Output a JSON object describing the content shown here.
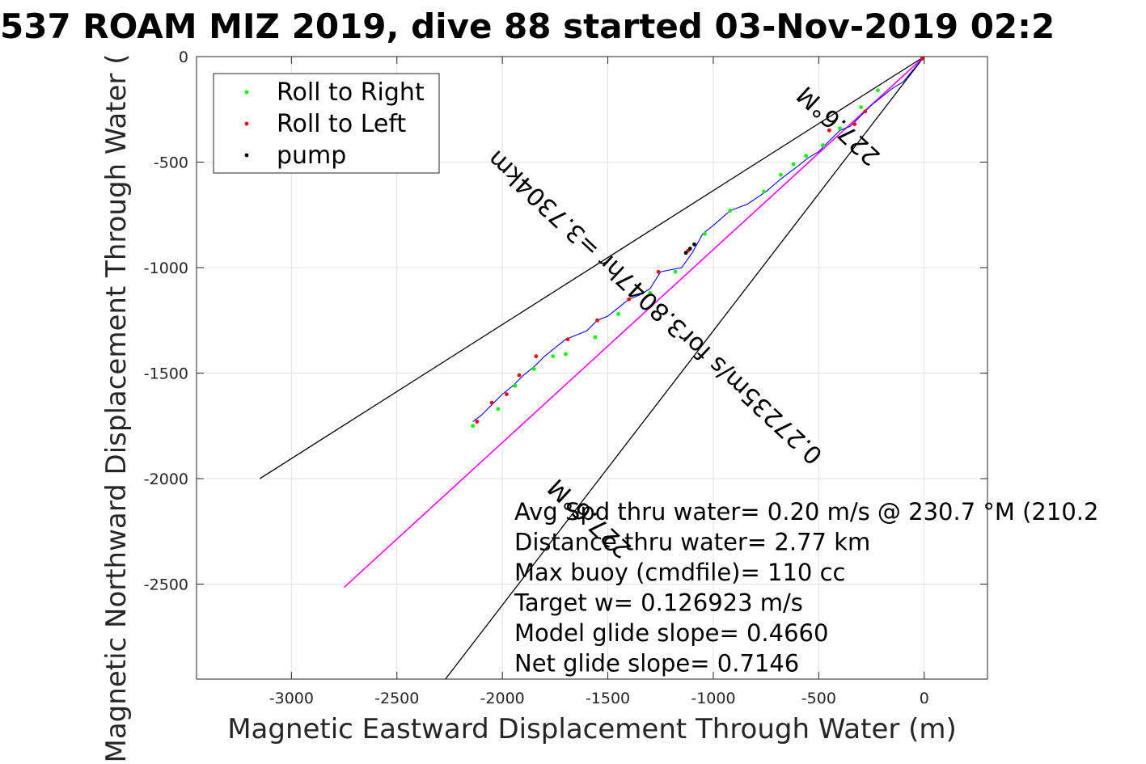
{
  "chart_data": {
    "type": "line",
    "title": "537 ROAM MIZ 2019, dive 88 started 03-Nov-2019 02:2",
    "xlabel": "Magnetic Eastward Displacement Through Water (m)",
    "ylabel": "Magnetic Northward Displacement Through Water (",
    "xlim": [
      -3450,
      300
    ],
    "ylim": [
      -2950,
      0
    ],
    "xticks": [
      -3000,
      -2500,
      -2000,
      -1500,
      -1000,
      -500,
      0
    ],
    "yticks": [
      0,
      -500,
      -1000,
      -1500,
      -2000,
      -2500
    ],
    "grid": true,
    "legend": {
      "placement": "top-left",
      "entries": [
        {
          "label": "Roll to Right",
          "color": "#00ff00"
        },
        {
          "label": "Roll to Left",
          "color": "#ff0000"
        },
        {
          "label": "pump",
          "color": "#000000"
        }
      ]
    },
    "colors": {
      "track": "#0000ff",
      "vector": "#ff00ff",
      "cone": "#000000"
    },
    "track": {
      "x": [
        0,
        -50,
        -100,
        -150,
        -200,
        -250,
        -300,
        -350,
        -400,
        -450,
        -500,
        -550,
        -600,
        -680,
        -750,
        -840,
        -920,
        -1000,
        -1050,
        -1100,
        -1150,
        -1200,
        -1250,
        -1300,
        -1350,
        -1400,
        -1450,
        -1500,
        -1550,
        -1600,
        -1650,
        -1700,
        -1750,
        -1800,
        -1850,
        -1900,
        -1950,
        -2000,
        -2050,
        -2100,
        -2140
      ],
      "y": [
        0,
        -60,
        -120,
        -150,
        -190,
        -230,
        -280,
        -330,
        -350,
        -400,
        -450,
        -480,
        -520,
        -580,
        -640,
        -700,
        -730,
        -800,
        -840,
        -930,
        -1000,
        -1010,
        -1020,
        -1100,
        -1130,
        -1150,
        -1190,
        -1230,
        -1250,
        -1300,
        -1320,
        -1340,
        -1380,
        -1420,
        -1470,
        -1510,
        -1560,
        -1600,
        -1650,
        -1700,
        -1730
      ]
    },
    "roll_right": {
      "x": [
        -220,
        -300,
        -400,
        -480,
        -560,
        -620,
        -680,
        -760,
        -920,
        -1040,
        -1180,
        -1300,
        -1450,
        -1560,
        -1700,
        -1760,
        -1850,
        -1940,
        -2020,
        -2140
      ],
      "y": [
        -160,
        -240,
        -340,
        -420,
        -470,
        -510,
        -560,
        -640,
        -730,
        -840,
        -1020,
        -1120,
        -1220,
        -1330,
        -1410,
        -1420,
        -1480,
        -1560,
        -1670,
        -1750
      ]
    },
    "roll_left": {
      "x": [
        -10,
        -280,
        -330,
        -450,
        -1120,
        -1260,
        -1400,
        -1550,
        -1690,
        -1840,
        -1920,
        -1980,
        -2050,
        -2120
      ],
      "y": [
        -10,
        -260,
        -320,
        -350,
        -920,
        -1020,
        -1150,
        -1250,
        -1340,
        -1420,
        -1510,
        -1600,
        -1640,
        -1730
      ]
    },
    "pump": {
      "x": [
        -1130,
        -1110,
        -1090
      ],
      "y": [
        -930,
        -910,
        -890
      ]
    },
    "vector": {
      "x": [
        0,
        -2750
      ],
      "y": [
        0,
        -2515
      ]
    },
    "cone": [
      {
        "x": [
          0,
          -3150
        ],
        "y": [
          0,
          -2000
        ]
      },
      {
        "x": [
          0,
          -2270
        ],
        "y": [
          0,
          -2950
        ]
      }
    ],
    "line_labels": [
      {
        "text": "227.6°M",
        "x": -1560,
        "y": -2160,
        "angle": 223
      },
      {
        "text": "227.6°M",
        "x": -380,
        "y": -300,
        "angle": 223
      },
      {
        "text": "0.27235m/s for3.8047hr =3.7304km",
        "x": -1250,
        "y": -1160,
        "angle": 223
      }
    ],
    "annotations": [
      "Avg Spd thru water=  0.20 m/s @ 230.7 °M (210.2",
      "Distance thru water=  2.77 km",
      "Max buoy (cmdfile)= 110 cc",
      "Target w= 0.126923 m/s",
      "Model glide slope= 0.4660",
      "Net glide slope= 0.7146"
    ]
  }
}
